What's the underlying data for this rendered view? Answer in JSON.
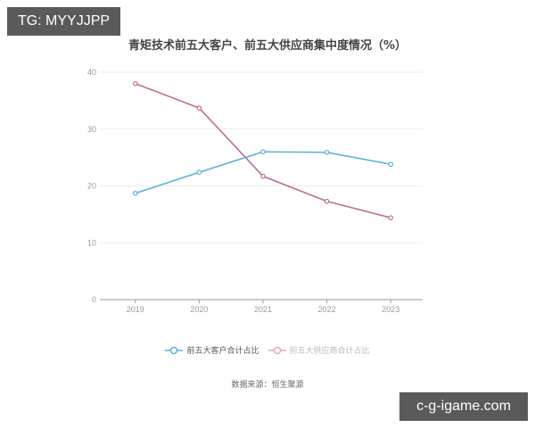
{
  "watermarks": {
    "top_left": "TG: MYYJJPP",
    "bottom_right": "c-g-igame.com"
  },
  "colors": {
    "customer_series": "#5ab1d6",
    "supplier_series": "#b96f96",
    "supplier_legend_faded": "#e2a8c0",
    "grid": "#eeeeee",
    "axis": "#999999"
  },
  "legend": {
    "items": [
      {
        "label": "前五大客户合计占比",
        "color": "#5ab1d6",
        "faded": false
      },
      {
        "label": "前五大供应商合计占比",
        "color": "#e2a8c0",
        "faded": true
      }
    ]
  },
  "source": "数据来源：恒生聚源",
  "chart_data": {
    "type": "line",
    "title": "青矩技术前五大客户、前五大供应商集中度情况（%）",
    "xlabel": "",
    "ylabel": "",
    "categories": [
      "2019",
      "2020",
      "2021",
      "2022",
      "2023"
    ],
    "series": [
      {
        "name": "前五大客户合计占比",
        "values": [
          18.7,
          22.4,
          26.0,
          25.9,
          23.8
        ]
      },
      {
        "name": "前五大供应商合计占比",
        "values": [
          38.0,
          33.7,
          21.7,
          17.3,
          14.4
        ]
      }
    ],
    "ylim": [
      0,
      40
    ],
    "yticks": [
      0,
      10,
      20,
      30,
      40
    ],
    "grid": true,
    "legend_position": "bottom"
  }
}
